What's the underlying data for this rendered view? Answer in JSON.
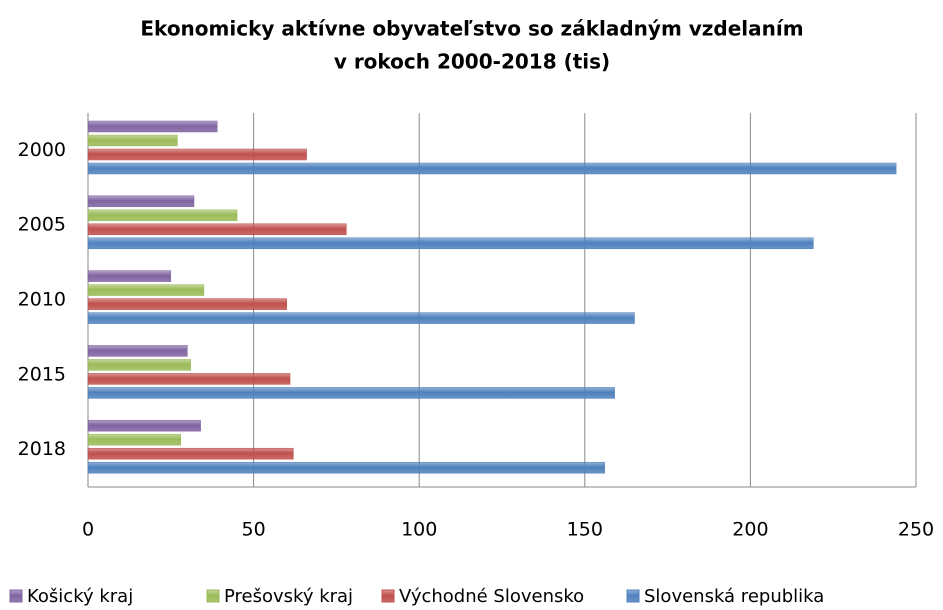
{
  "chart_data": {
    "type": "hbar",
    "title": [
      "Ekonomicky aktívne obyvateľstvo so základným vzdelaním",
      "v rokoch 2000-2018 (tis)"
    ],
    "categories": [
      "2000",
      "2005",
      "2010",
      "2015",
      "2018"
    ],
    "series": [
      {
        "name": "Košický kraj",
        "color": "#8064a2",
        "values": [
          39,
          32,
          25,
          30,
          34
        ]
      },
      {
        "name": "Prešovský kraj",
        "color": "#9bbb59",
        "values": [
          27,
          45,
          35,
          31,
          28
        ]
      },
      {
        "name": "Východné Slovensko",
        "color": "#c0504d",
        "values": [
          66,
          78,
          60,
          61,
          62
        ]
      },
      {
        "name": "Slovenská republika",
        "color": "#4f81bd",
        "values": [
          244,
          219,
          165,
          159,
          156
        ]
      }
    ],
    "xlim": [
      0,
      250
    ],
    "xticks": [
      0,
      50,
      100,
      150,
      200,
      250
    ],
    "grid": true,
    "legend": "bottom"
  }
}
